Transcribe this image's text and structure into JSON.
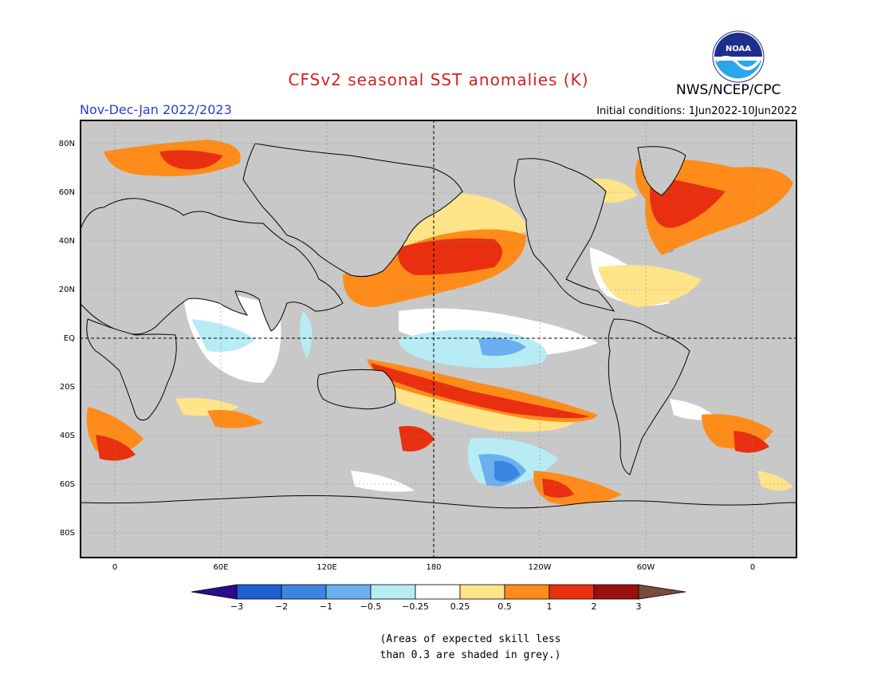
{
  "title": "CFSv2 seasonal SST anomalies (K)",
  "agency": "NWS/NCEP/CPC",
  "logo_text": "NOAA",
  "period": "Nov-Dec-Jan 2022/2023",
  "initial_conditions": "Initial conditions: 1Jun2022-10Jun2022",
  "latitude_labels": [
    "80N",
    "60N",
    "40N",
    "20N",
    "EQ",
    "20S",
    "40S",
    "60S",
    "80S"
  ],
  "longitude_labels": [
    "0",
    "60E",
    "120E",
    "180",
    "120W",
    "60W",
    "0"
  ],
  "colorbar": {
    "tick_labels": [
      "−3",
      "−2",
      "−1",
      "−0.5",
      "−0.25",
      "0.25",
      "0.5",
      "1",
      "2",
      "3"
    ],
    "colors": [
      "#2a0d8c",
      "#1f5fcf",
      "#3a86e0",
      "#6ab0ef",
      "#b7ecf5",
      "#ffffff",
      "#ffe48a",
      "#ff8c1a",
      "#e83010",
      "#c01010",
      "#9a1010",
      "#7a4a3a"
    ]
  },
  "skill_note_line1": "(Areas of expected skill less",
  "skill_note_line2": "than 0.3 are shaded in grey.)",
  "colors": {
    "grey_low_skill": "#c8c8c8",
    "title": "#d42020",
    "period": "#2a3fd0"
  }
}
